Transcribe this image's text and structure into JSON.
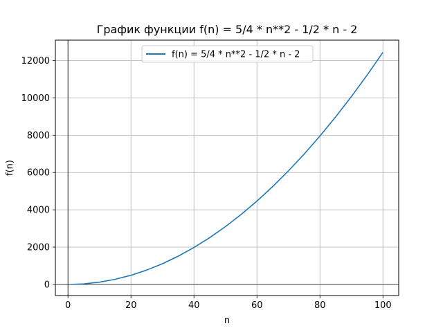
{
  "chart_data": {
    "type": "line",
    "title": "График функции f(n) = 5/4 * n**2 - 1/2 * n - 2",
    "xlabel": "n",
    "ylabel": "f(n)",
    "xlim": [
      -4,
      105
    ],
    "ylim": [
      -600,
      13100
    ],
    "xticks": [
      0,
      20,
      40,
      60,
      80,
      100
    ],
    "yticks": [
      0,
      2000,
      4000,
      6000,
      8000,
      10000,
      12000
    ],
    "grid": true,
    "legend_position": "top-center",
    "series": [
      {
        "name": "f(n) = 5/4 * n**2 - 1/2 * n - 2",
        "color": "#1f77b4",
        "x": [
          1,
          5,
          10,
          15,
          20,
          25,
          30,
          35,
          40,
          45,
          50,
          55,
          60,
          65,
          70,
          75,
          80,
          85,
          90,
          95,
          100
        ],
        "y": [
          -1.25,
          26.75,
          118,
          271.75,
          488,
          766.75,
          1108,
          1511.75,
          1978,
          2506.75,
          3098,
          3751.75,
          4468,
          5246.75,
          6088,
          6991.75,
          7958,
          8986.75,
          10078,
          11231.75,
          12448
        ]
      }
    ]
  }
}
